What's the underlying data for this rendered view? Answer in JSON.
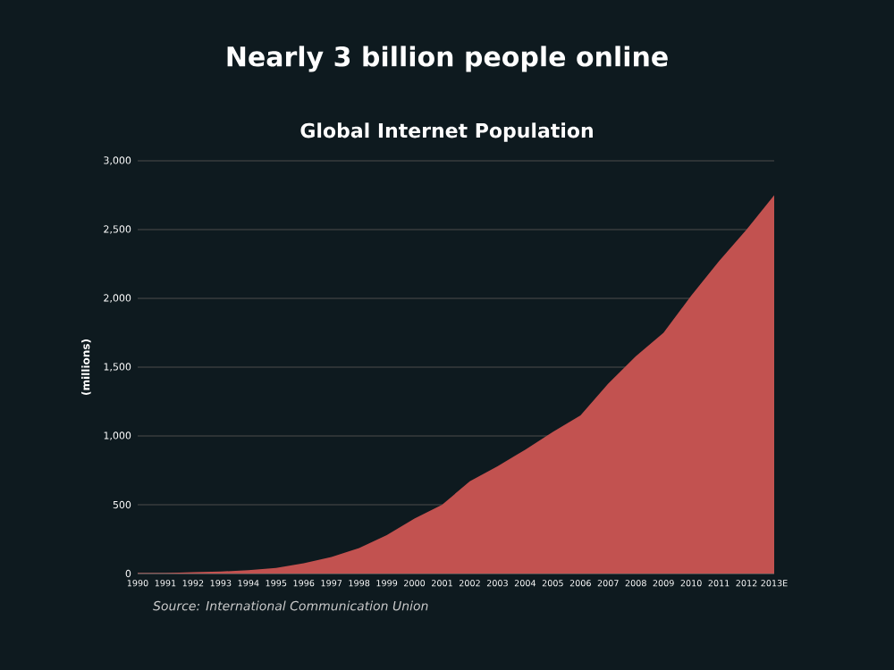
{
  "chart_data": {
    "type": "area",
    "title": "Nearly 3 billion people online",
    "subtitle": "Global Internet Population",
    "ylabel": "(millions)",
    "categories": [
      "1990",
      "1991",
      "1992",
      "1993",
      "1994",
      "1995",
      "1996",
      "1997",
      "1998",
      "1999",
      "2000",
      "2001",
      "2002",
      "2003",
      "2004",
      "2005",
      "2006",
      "2007",
      "2008",
      "2009",
      "2010",
      "2011",
      "2012",
      "2013E"
    ],
    "values": [
      3,
      4,
      10,
      14,
      25,
      40,
      75,
      120,
      185,
      280,
      400,
      500,
      670,
      780,
      900,
      1030,
      1150,
      1380,
      1580,
      1750,
      2020,
      2270,
      2500,
      2750
    ],
    "color": "#c25250",
    "ylim": [
      0,
      3000
    ],
    "yticks": [
      {
        "value": 0,
        "label": "0"
      },
      {
        "value": 500,
        "label": "500"
      },
      {
        "value": 1000,
        "label": "1,000"
      },
      {
        "value": 1500,
        "label": "1,500"
      },
      {
        "value": 2000,
        "label": "2,000"
      },
      {
        "value": 2500,
        "label": "2,500"
      },
      {
        "value": 3000,
        "label": "3,000"
      }
    ],
    "grid": "y",
    "annotations": [
      "Source: International Communication Union"
    ]
  }
}
